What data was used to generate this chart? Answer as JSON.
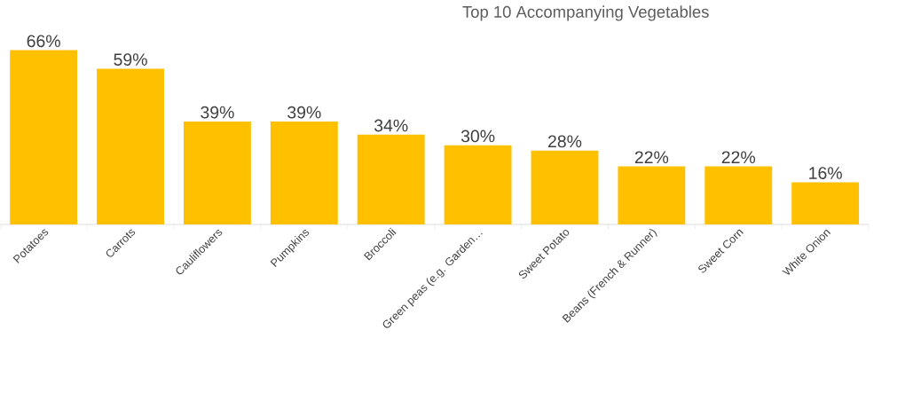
{
  "chart_data": {
    "type": "bar",
    "title": "Top 10 Accompanying Vegetables",
    "categories": [
      "Potatoes",
      "Carrots",
      "Cauliflowers",
      "Pumpkins",
      "Broccoli",
      "Green peas (e.g. Garden…",
      "Sweet Potato",
      "Beans (French & Runner)",
      "Sweet Corn",
      "White Onion"
    ],
    "values": [
      66,
      59,
      39,
      39,
      34,
      30,
      28,
      22,
      22,
      16
    ],
    "value_labels": [
      "66%",
      "59%",
      "39%",
      "39%",
      "34%",
      "30%",
      "28%",
      "22%",
      "22%",
      "16%"
    ],
    "color": "#ffc000"
  }
}
